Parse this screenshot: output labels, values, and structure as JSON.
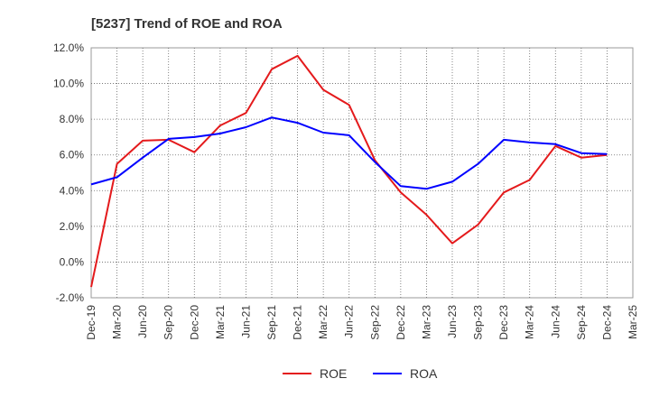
{
  "chart_data": {
    "type": "line",
    "title": "[5237]  Trend of ROE and ROA",
    "xlabel": "",
    "ylabel": "",
    "x": [
      "Dec-19",
      "Mar-20",
      "Jun-20",
      "Sep-20",
      "Dec-20",
      "Mar-21",
      "Jun-21",
      "Sep-21",
      "Dec-21",
      "Mar-22",
      "Jun-22",
      "Sep-22",
      "Dec-22",
      "Mar-23",
      "Jun-23",
      "Sep-23",
      "Dec-23",
      "Mar-24",
      "Jun-24",
      "Sep-24",
      "Dec-24",
      "Mar-25"
    ],
    "y_ticks": [
      "-2.0%",
      "0.0%",
      "2.0%",
      "4.0%",
      "6.0%",
      "8.0%",
      "10.0%",
      "12.0%"
    ],
    "ylim": [
      -2.0,
      12.0
    ],
    "grid": true,
    "legend_position": "bottom-center",
    "series": [
      {
        "name": "ROE",
        "color": "#e41a1c",
        "values": [
          -1.4,
          5.5,
          6.8,
          6.85,
          6.15,
          7.65,
          8.35,
          10.8,
          11.55,
          9.65,
          8.8,
          5.7,
          3.9,
          2.65,
          1.05,
          2.1,
          3.9,
          4.6,
          6.5,
          5.85,
          6.0,
          null
        ]
      },
      {
        "name": "ROA",
        "color": "#0000ff",
        "values": [
          4.35,
          4.75,
          5.85,
          6.9,
          7.0,
          7.2,
          7.55,
          8.1,
          7.8,
          7.25,
          7.1,
          5.6,
          4.25,
          4.1,
          4.5,
          5.5,
          6.85,
          6.7,
          6.6,
          6.1,
          6.05,
          null
        ]
      }
    ]
  }
}
